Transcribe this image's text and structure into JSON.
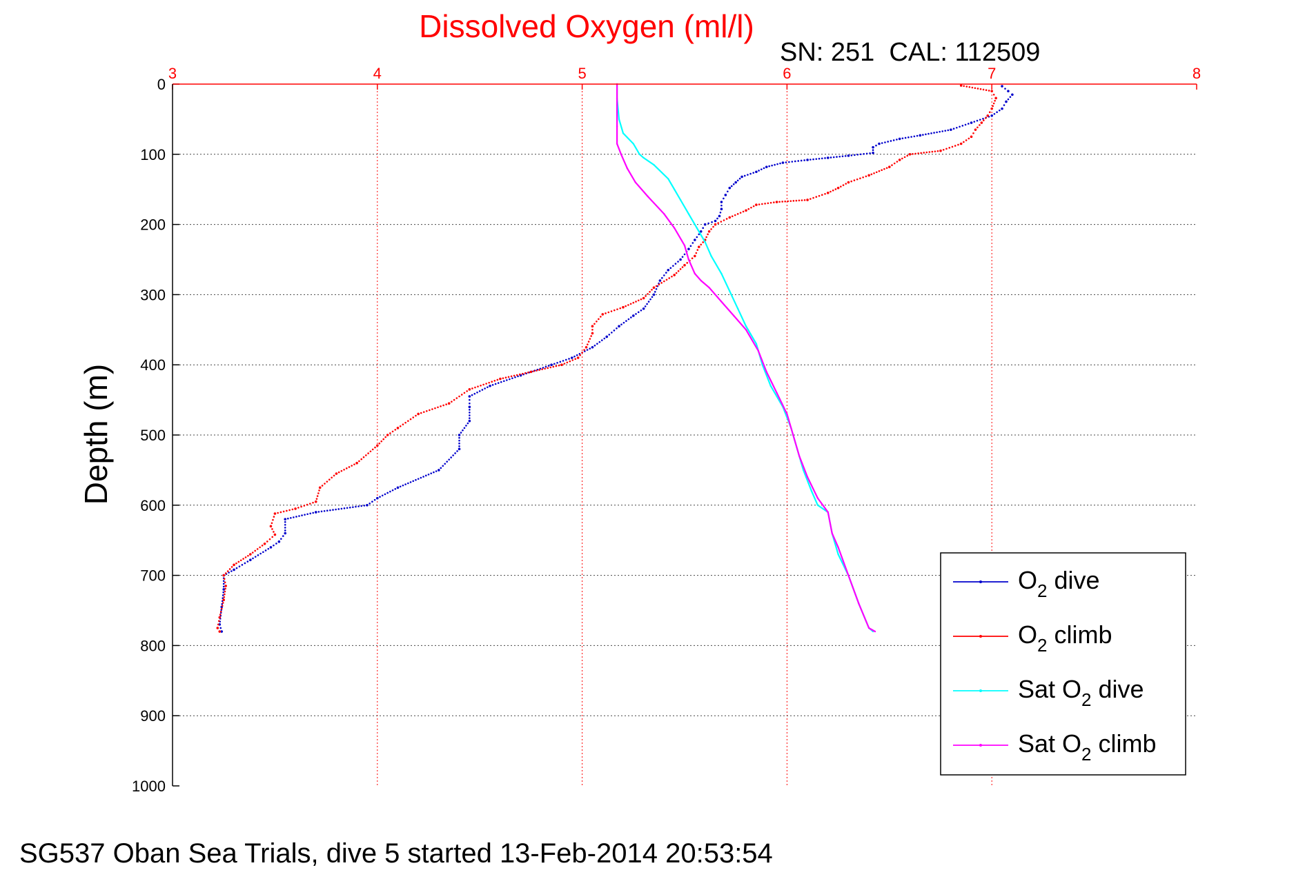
{
  "chart_data": {
    "type": "scatter",
    "title": "Dissolved Oxygen (ml/l)",
    "subtitle": "SN: 251  CAL: 112509",
    "xlabel": "",
    "ylabel": "Depth (m)",
    "xlim": [
      3,
      8
    ],
    "ylim": [
      0,
      1000
    ],
    "y_reversed": true,
    "x_axis_position": "top",
    "x_ticks": [
      3,
      4,
      5,
      6,
      7,
      8
    ],
    "y_ticks": [
      0,
      100,
      200,
      300,
      400,
      500,
      600,
      700,
      800,
      900,
      1000
    ],
    "grid": true,
    "legend_position": "bottom-right",
    "colors": {
      "title": "#ff0000",
      "x_axis": "#ff0000",
      "grid_x": "#ff0000",
      "grid_y": "#444444"
    },
    "series": [
      {
        "legend_prefix": "O",
        "legend_sub": "2",
        "legend_suffix": " dive",
        "color": "#0000cc",
        "marker": "dot",
        "points": [
          [
            7.05,
            3
          ],
          [
            7.08,
            10
          ],
          [
            7.1,
            15
          ],
          [
            7.07,
            25
          ],
          [
            7.05,
            35
          ],
          [
            7.0,
            45
          ],
          [
            6.9,
            55
          ],
          [
            6.8,
            65
          ],
          [
            6.65,
            73
          ],
          [
            6.55,
            78
          ],
          [
            6.45,
            85
          ],
          [
            6.42,
            90
          ],
          [
            6.42,
            98
          ],
          [
            6.3,
            102
          ],
          [
            6.2,
            105
          ],
          [
            6.1,
            108
          ],
          [
            5.98,
            112
          ],
          [
            5.9,
            118
          ],
          [
            5.85,
            125
          ],
          [
            5.78,
            132
          ],
          [
            5.75,
            140
          ],
          [
            5.72,
            148
          ],
          [
            5.7,
            158
          ],
          [
            5.68,
            168
          ],
          [
            5.68,
            178
          ],
          [
            5.67,
            188
          ],
          [
            5.65,
            195
          ],
          [
            5.6,
            200
          ],
          [
            5.58,
            210
          ],
          [
            5.55,
            222
          ],
          [
            5.52,
            235
          ],
          [
            5.48,
            250
          ],
          [
            5.42,
            265
          ],
          [
            5.38,
            280
          ],
          [
            5.35,
            300
          ],
          [
            5.3,
            320
          ],
          [
            5.25,
            330
          ],
          [
            5.18,
            345
          ],
          [
            5.12,
            360
          ],
          [
            5.05,
            375
          ],
          [
            4.95,
            390
          ],
          [
            4.85,
            400
          ],
          [
            4.7,
            415
          ],
          [
            4.55,
            430
          ],
          [
            4.45,
            445
          ],
          [
            4.45,
            460
          ],
          [
            4.45,
            480
          ],
          [
            4.4,
            500
          ],
          [
            4.4,
            520
          ],
          [
            4.3,
            550
          ],
          [
            4.1,
            575
          ],
          [
            4.0,
            590
          ],
          [
            3.95,
            600
          ],
          [
            3.7,
            610
          ],
          [
            3.55,
            620
          ],
          [
            3.55,
            640
          ],
          [
            3.52,
            652
          ],
          [
            3.48,
            660
          ],
          [
            3.38,
            678
          ],
          [
            3.3,
            692
          ],
          [
            3.25,
            700
          ],
          [
            3.25,
            720
          ],
          [
            3.24,
            745
          ],
          [
            3.23,
            770
          ],
          [
            3.24,
            780
          ]
        ]
      },
      {
        "legend_prefix": "O",
        "legend_sub": "2",
        "legend_suffix": " climb",
        "color": "#ff0000",
        "marker": "dot",
        "points": [
          [
            6.85,
            2
          ],
          [
            7.0,
            10
          ],
          [
            7.02,
            20
          ],
          [
            7.0,
            35
          ],
          [
            6.98,
            45
          ],
          [
            6.95,
            55
          ],
          [
            6.92,
            65
          ],
          [
            6.9,
            75
          ],
          [
            6.85,
            85
          ],
          [
            6.75,
            95
          ],
          [
            6.6,
            100
          ],
          [
            6.55,
            108
          ],
          [
            6.5,
            118
          ],
          [
            6.4,
            130
          ],
          [
            6.3,
            140
          ],
          [
            6.25,
            148
          ],
          [
            6.2,
            155
          ],
          [
            6.1,
            165
          ],
          [
            5.95,
            168
          ],
          [
            5.85,
            172
          ],
          [
            5.8,
            180
          ],
          [
            5.72,
            190
          ],
          [
            5.65,
            200
          ],
          [
            5.62,
            210
          ],
          [
            5.6,
            222
          ],
          [
            5.57,
            232
          ],
          [
            5.55,
            245
          ],
          [
            5.5,
            258
          ],
          [
            5.45,
            272
          ],
          [
            5.35,
            290
          ],
          [
            5.3,
            305
          ],
          [
            5.2,
            318
          ],
          [
            5.1,
            328
          ],
          [
            5.05,
            345
          ],
          [
            5.05,
            355
          ],
          [
            5.02,
            375
          ],
          [
            4.98,
            390
          ],
          [
            4.9,
            400
          ],
          [
            4.75,
            410
          ],
          [
            4.6,
            420
          ],
          [
            4.45,
            435
          ],
          [
            4.35,
            455
          ],
          [
            4.2,
            470
          ],
          [
            4.1,
            490
          ],
          [
            4.05,
            500
          ],
          [
            4.0,
            515
          ],
          [
            3.9,
            540
          ],
          [
            3.8,
            555
          ],
          [
            3.72,
            575
          ],
          [
            3.7,
            595
          ],
          [
            3.6,
            605
          ],
          [
            3.5,
            612
          ],
          [
            3.48,
            630
          ],
          [
            3.5,
            642
          ],
          [
            3.45,
            655
          ],
          [
            3.38,
            670
          ],
          [
            3.3,
            685
          ],
          [
            3.25,
            700
          ],
          [
            3.26,
            715
          ],
          [
            3.25,
            735
          ],
          [
            3.23,
            760
          ],
          [
            3.22,
            775
          ],
          [
            3.23,
            780
          ]
        ]
      },
      {
        "legend_prefix": "Sat O",
        "legend_sub": "2",
        "legend_suffix": " dive",
        "color": "#00ffff",
        "marker": "line",
        "points": [
          [
            5.17,
            0
          ],
          [
            5.17,
            20
          ],
          [
            5.18,
            50
          ],
          [
            5.2,
            70
          ],
          [
            5.25,
            85
          ],
          [
            5.28,
            100
          ],
          [
            5.3,
            105
          ],
          [
            5.35,
            115
          ],
          [
            5.42,
            135
          ],
          [
            5.45,
            150
          ],
          [
            5.48,
            165
          ],
          [
            5.52,
            185
          ],
          [
            5.56,
            205
          ],
          [
            5.6,
            225
          ],
          [
            5.63,
            245
          ],
          [
            5.68,
            270
          ],
          [
            5.72,
            295
          ],
          [
            5.76,
            320
          ],
          [
            5.8,
            345
          ],
          [
            5.85,
            370
          ],
          [
            5.88,
            400
          ],
          [
            5.92,
            430
          ],
          [
            5.98,
            460
          ],
          [
            6.02,
            490
          ],
          [
            6.05,
            520
          ],
          [
            6.08,
            550
          ],
          [
            6.12,
            580
          ],
          [
            6.15,
            600
          ],
          [
            6.2,
            610
          ],
          [
            6.22,
            640
          ],
          [
            6.25,
            670
          ],
          [
            6.3,
            700
          ],
          [
            6.35,
            740
          ],
          [
            6.4,
            775
          ],
          [
            6.42,
            780
          ]
        ]
      },
      {
        "legend_prefix": "Sat O",
        "legend_sub": "2",
        "legend_suffix": " climb",
        "color": "#ff00ff",
        "marker": "line",
        "points": [
          [
            5.17,
            0
          ],
          [
            5.17,
            30
          ],
          [
            5.17,
            60
          ],
          [
            5.17,
            85
          ],
          [
            5.19,
            100
          ],
          [
            5.22,
            120
          ],
          [
            5.26,
            140
          ],
          [
            5.32,
            160
          ],
          [
            5.4,
            185
          ],
          [
            5.45,
            205
          ],
          [
            5.5,
            230
          ],
          [
            5.52,
            250
          ],
          [
            5.55,
            270
          ],
          [
            5.58,
            280
          ],
          [
            5.62,
            290
          ],
          [
            5.68,
            310
          ],
          [
            5.74,
            330
          ],
          [
            5.8,
            350
          ],
          [
            5.86,
            380
          ],
          [
            5.9,
            410
          ],
          [
            5.95,
            440
          ],
          [
            6.0,
            470
          ],
          [
            6.03,
            500
          ],
          [
            6.06,
            530
          ],
          [
            6.1,
            560
          ],
          [
            6.15,
            590
          ],
          [
            6.2,
            610
          ],
          [
            6.22,
            640
          ],
          [
            6.25,
            660
          ],
          [
            6.3,
            700
          ],
          [
            6.35,
            740
          ],
          [
            6.4,
            775
          ],
          [
            6.43,
            780
          ]
        ]
      }
    ]
  },
  "footer": "SG537 Oban Sea Trials, dive 5 started 13-Feb-2014 20:53:54"
}
